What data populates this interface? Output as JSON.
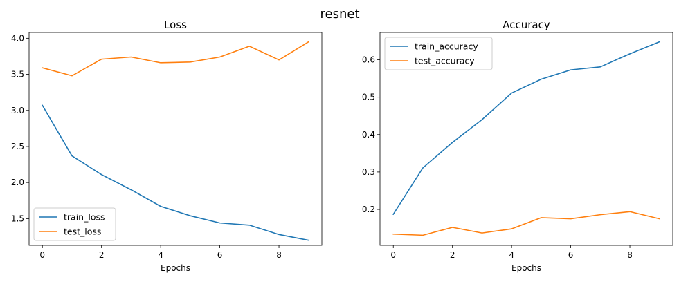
{
  "figure": {
    "suptitle": "resnet"
  },
  "chart_data": [
    {
      "type": "line",
      "title": "Loss",
      "xlabel": "Epochs",
      "ylabel": "",
      "x": [
        0,
        1,
        2,
        3,
        4,
        5,
        6,
        7,
        8,
        9
      ],
      "xlim": [
        -0.45,
        9.45
      ],
      "ylim": [
        1.13,
        4.08
      ],
      "xticks": [
        0,
        2,
        4,
        6,
        8
      ],
      "yticks": [
        1.5,
        2.0,
        2.5,
        3.0,
        3.5,
        4.0
      ],
      "ytick_decimals": 1,
      "grid": false,
      "legend_position": "lower-left",
      "series": [
        {
          "name": "train_loss",
          "color": "#1f77b4",
          "values": [
            3.07,
            2.37,
            2.11,
            1.9,
            1.67,
            1.54,
            1.44,
            1.41,
            1.28,
            1.2
          ]
        },
        {
          "name": "test_loss",
          "color": "#ff7f0e",
          "values": [
            3.59,
            3.48,
            3.71,
            3.74,
            3.66,
            3.67,
            3.74,
            3.89,
            3.7,
            3.95
          ]
        }
      ]
    },
    {
      "type": "line",
      "title": "Accuracy",
      "xlabel": "Epochs",
      "ylabel": "",
      "x": [
        0,
        1,
        2,
        3,
        4,
        5,
        6,
        7,
        8,
        9
      ],
      "xlim": [
        -0.45,
        9.45
      ],
      "ylim": [
        0.104,
        0.673
      ],
      "xticks": [
        0,
        2,
        4,
        6,
        8
      ],
      "yticks": [
        0.2,
        0.3,
        0.4,
        0.5,
        0.6
      ],
      "ytick_decimals": 1,
      "grid": false,
      "legend_position": "upper-left",
      "series": [
        {
          "name": "train_accuracy",
          "color": "#1f77b4",
          "values": [
            0.187,
            0.311,
            0.379,
            0.44,
            0.511,
            0.548,
            0.573,
            0.581,
            0.616,
            0.648
          ]
        },
        {
          "name": "test_accuracy",
          "color": "#ff7f0e",
          "values": [
            0.134,
            0.131,
            0.152,
            0.137,
            0.148,
            0.178,
            0.175,
            0.186,
            0.194,
            0.175
          ]
        }
      ]
    }
  ]
}
